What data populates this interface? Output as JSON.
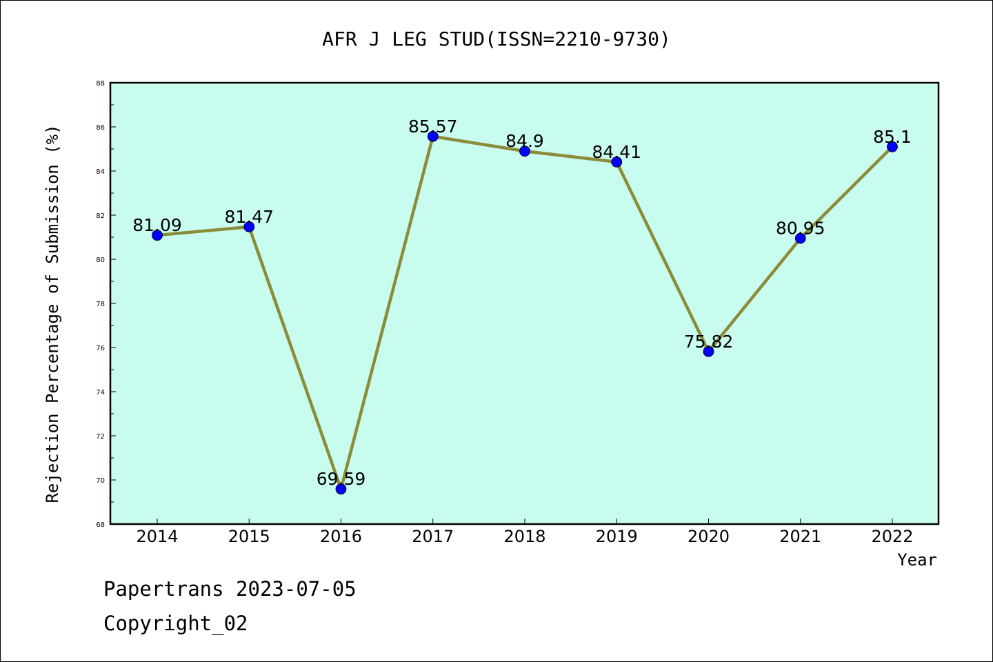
{
  "chart_data": {
    "type": "line",
    "title": "AFR J LEG STUD(ISSN=2210-9730)",
    "xlabel": "Year",
    "ylabel": "Rejection Percentage of Submission (%)",
    "categories": [
      "2014",
      "2015",
      "2016",
      "2017",
      "2018",
      "2019",
      "2020",
      "2021",
      "2022"
    ],
    "values": [
      81.09,
      81.47,
      69.59,
      85.57,
      84.9,
      84.41,
      75.82,
      80.95,
      85.1
    ],
    "data_labels": [
      "81.09",
      "81.47",
      "69.59",
      "85.57",
      "84.9",
      "84.41",
      "75.82",
      "80.95",
      "85.1"
    ],
    "ylim": [
      68,
      88
    ],
    "yticks": [
      68,
      70,
      72,
      74,
      76,
      78,
      80,
      82,
      84,
      86,
      88
    ],
    "grid": false,
    "legend": "none",
    "colors": {
      "plot_background": "#c8fcee",
      "line": "#8b8b3a",
      "marker": "#0000ff"
    }
  },
  "footer": {
    "line1": "Papertrans 2023-07-05",
    "line2": "Copyright_02"
  }
}
